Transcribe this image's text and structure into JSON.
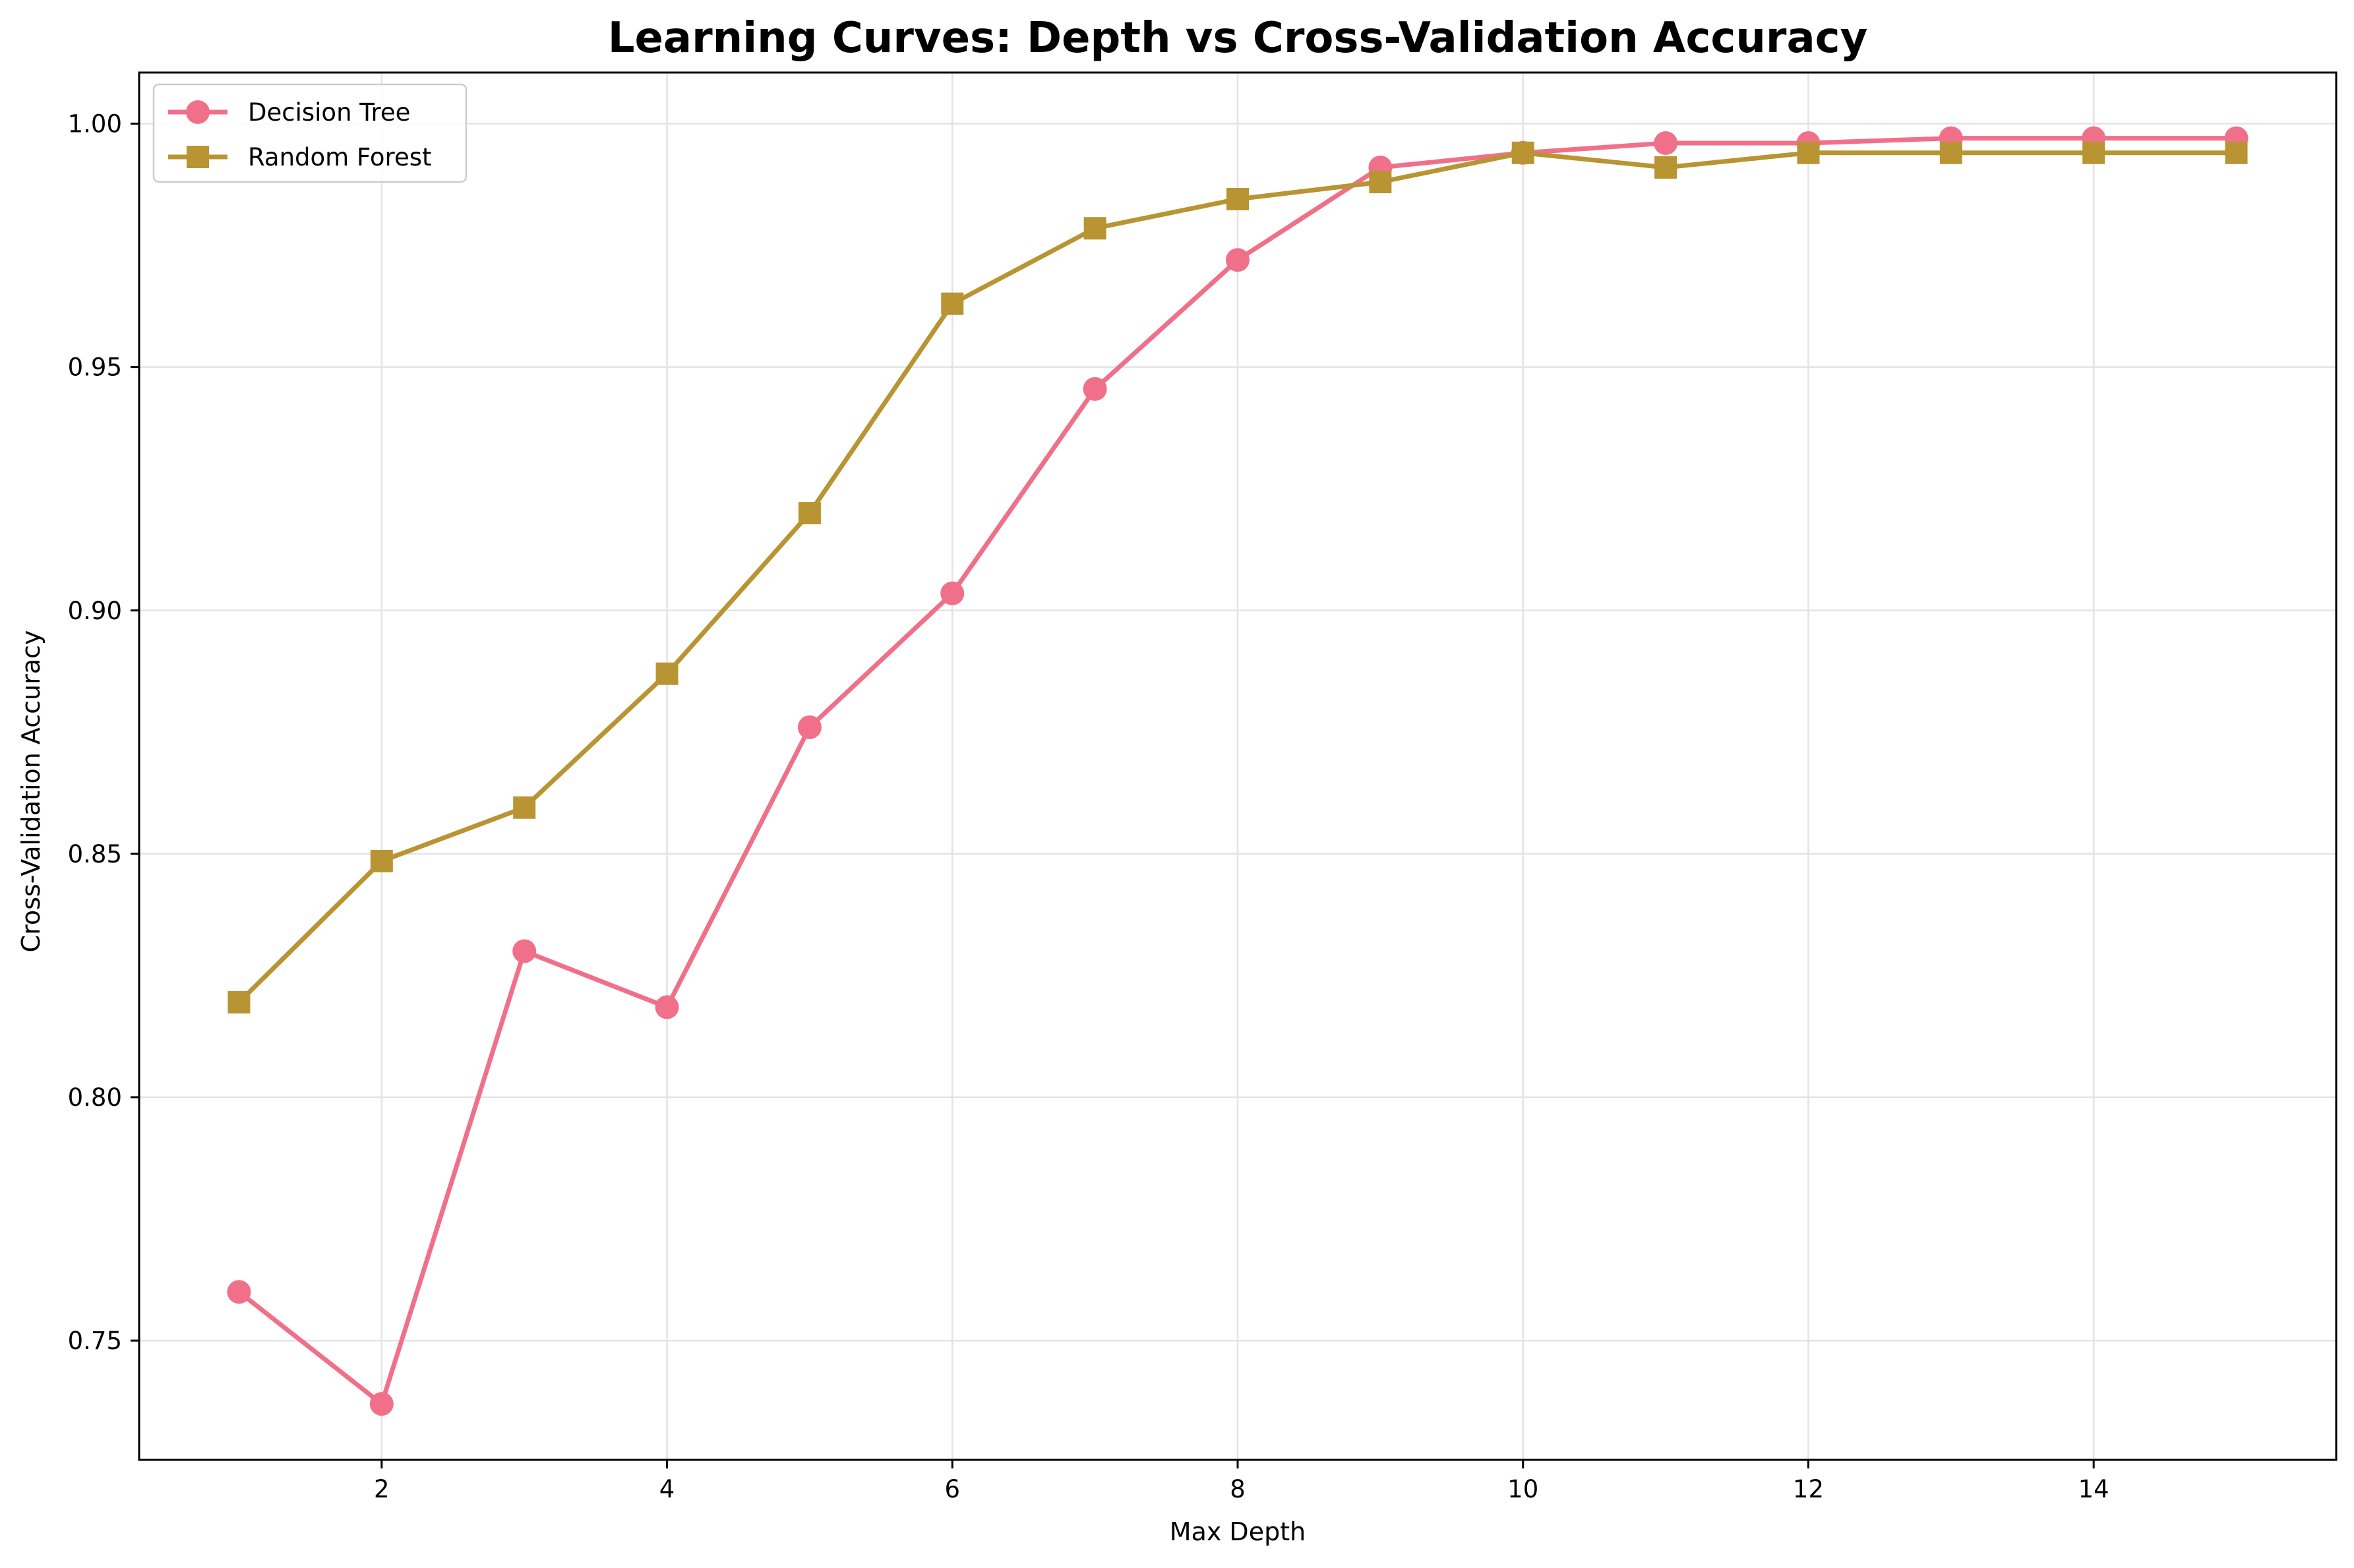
{
  "chart_data": {
    "type": "line",
    "title": "Learning Curves: Depth vs Cross-Validation Accuracy",
    "xlabel": "Max Depth",
    "ylabel": "Cross-Validation Accuracy",
    "xlim": [
      0.3,
      15.7
    ],
    "ylim": [
      0.7255,
      1.0105
    ],
    "xticks": [
      2,
      4,
      6,
      8,
      10,
      12,
      14
    ],
    "xtick_labels": [
      "2",
      "4",
      "6",
      "8",
      "10",
      "12",
      "14"
    ],
    "yticks": [
      0.75,
      0.8,
      0.85,
      0.9,
      0.95,
      1.0
    ],
    "ytick_labels": [
      "0.75",
      "0.80",
      "0.85",
      "0.90",
      "0.95",
      "1.00"
    ],
    "grid": true,
    "legend_position": "top-left",
    "x": [
      1,
      2,
      3,
      4,
      5,
      6,
      7,
      8,
      9,
      10,
      11,
      12,
      13,
      14,
      15
    ],
    "series": [
      {
        "name": "Decision Tree",
        "color": "#f0708a",
        "marker": "circle",
        "values": [
          0.76,
          0.737,
          0.83,
          0.8185,
          0.876,
          0.9035,
          0.9455,
          0.972,
          0.991,
          0.994,
          0.996,
          0.996,
          0.997,
          0.997,
          0.997
        ]
      },
      {
        "name": "Random Forest",
        "color": "#b89532",
        "marker": "square",
        "values": [
          0.8195,
          0.8485,
          0.8595,
          0.887,
          0.92,
          0.963,
          0.9785,
          0.9845,
          0.988,
          0.994,
          0.991,
          0.994,
          0.994,
          0.994,
          0.994
        ]
      }
    ]
  }
}
